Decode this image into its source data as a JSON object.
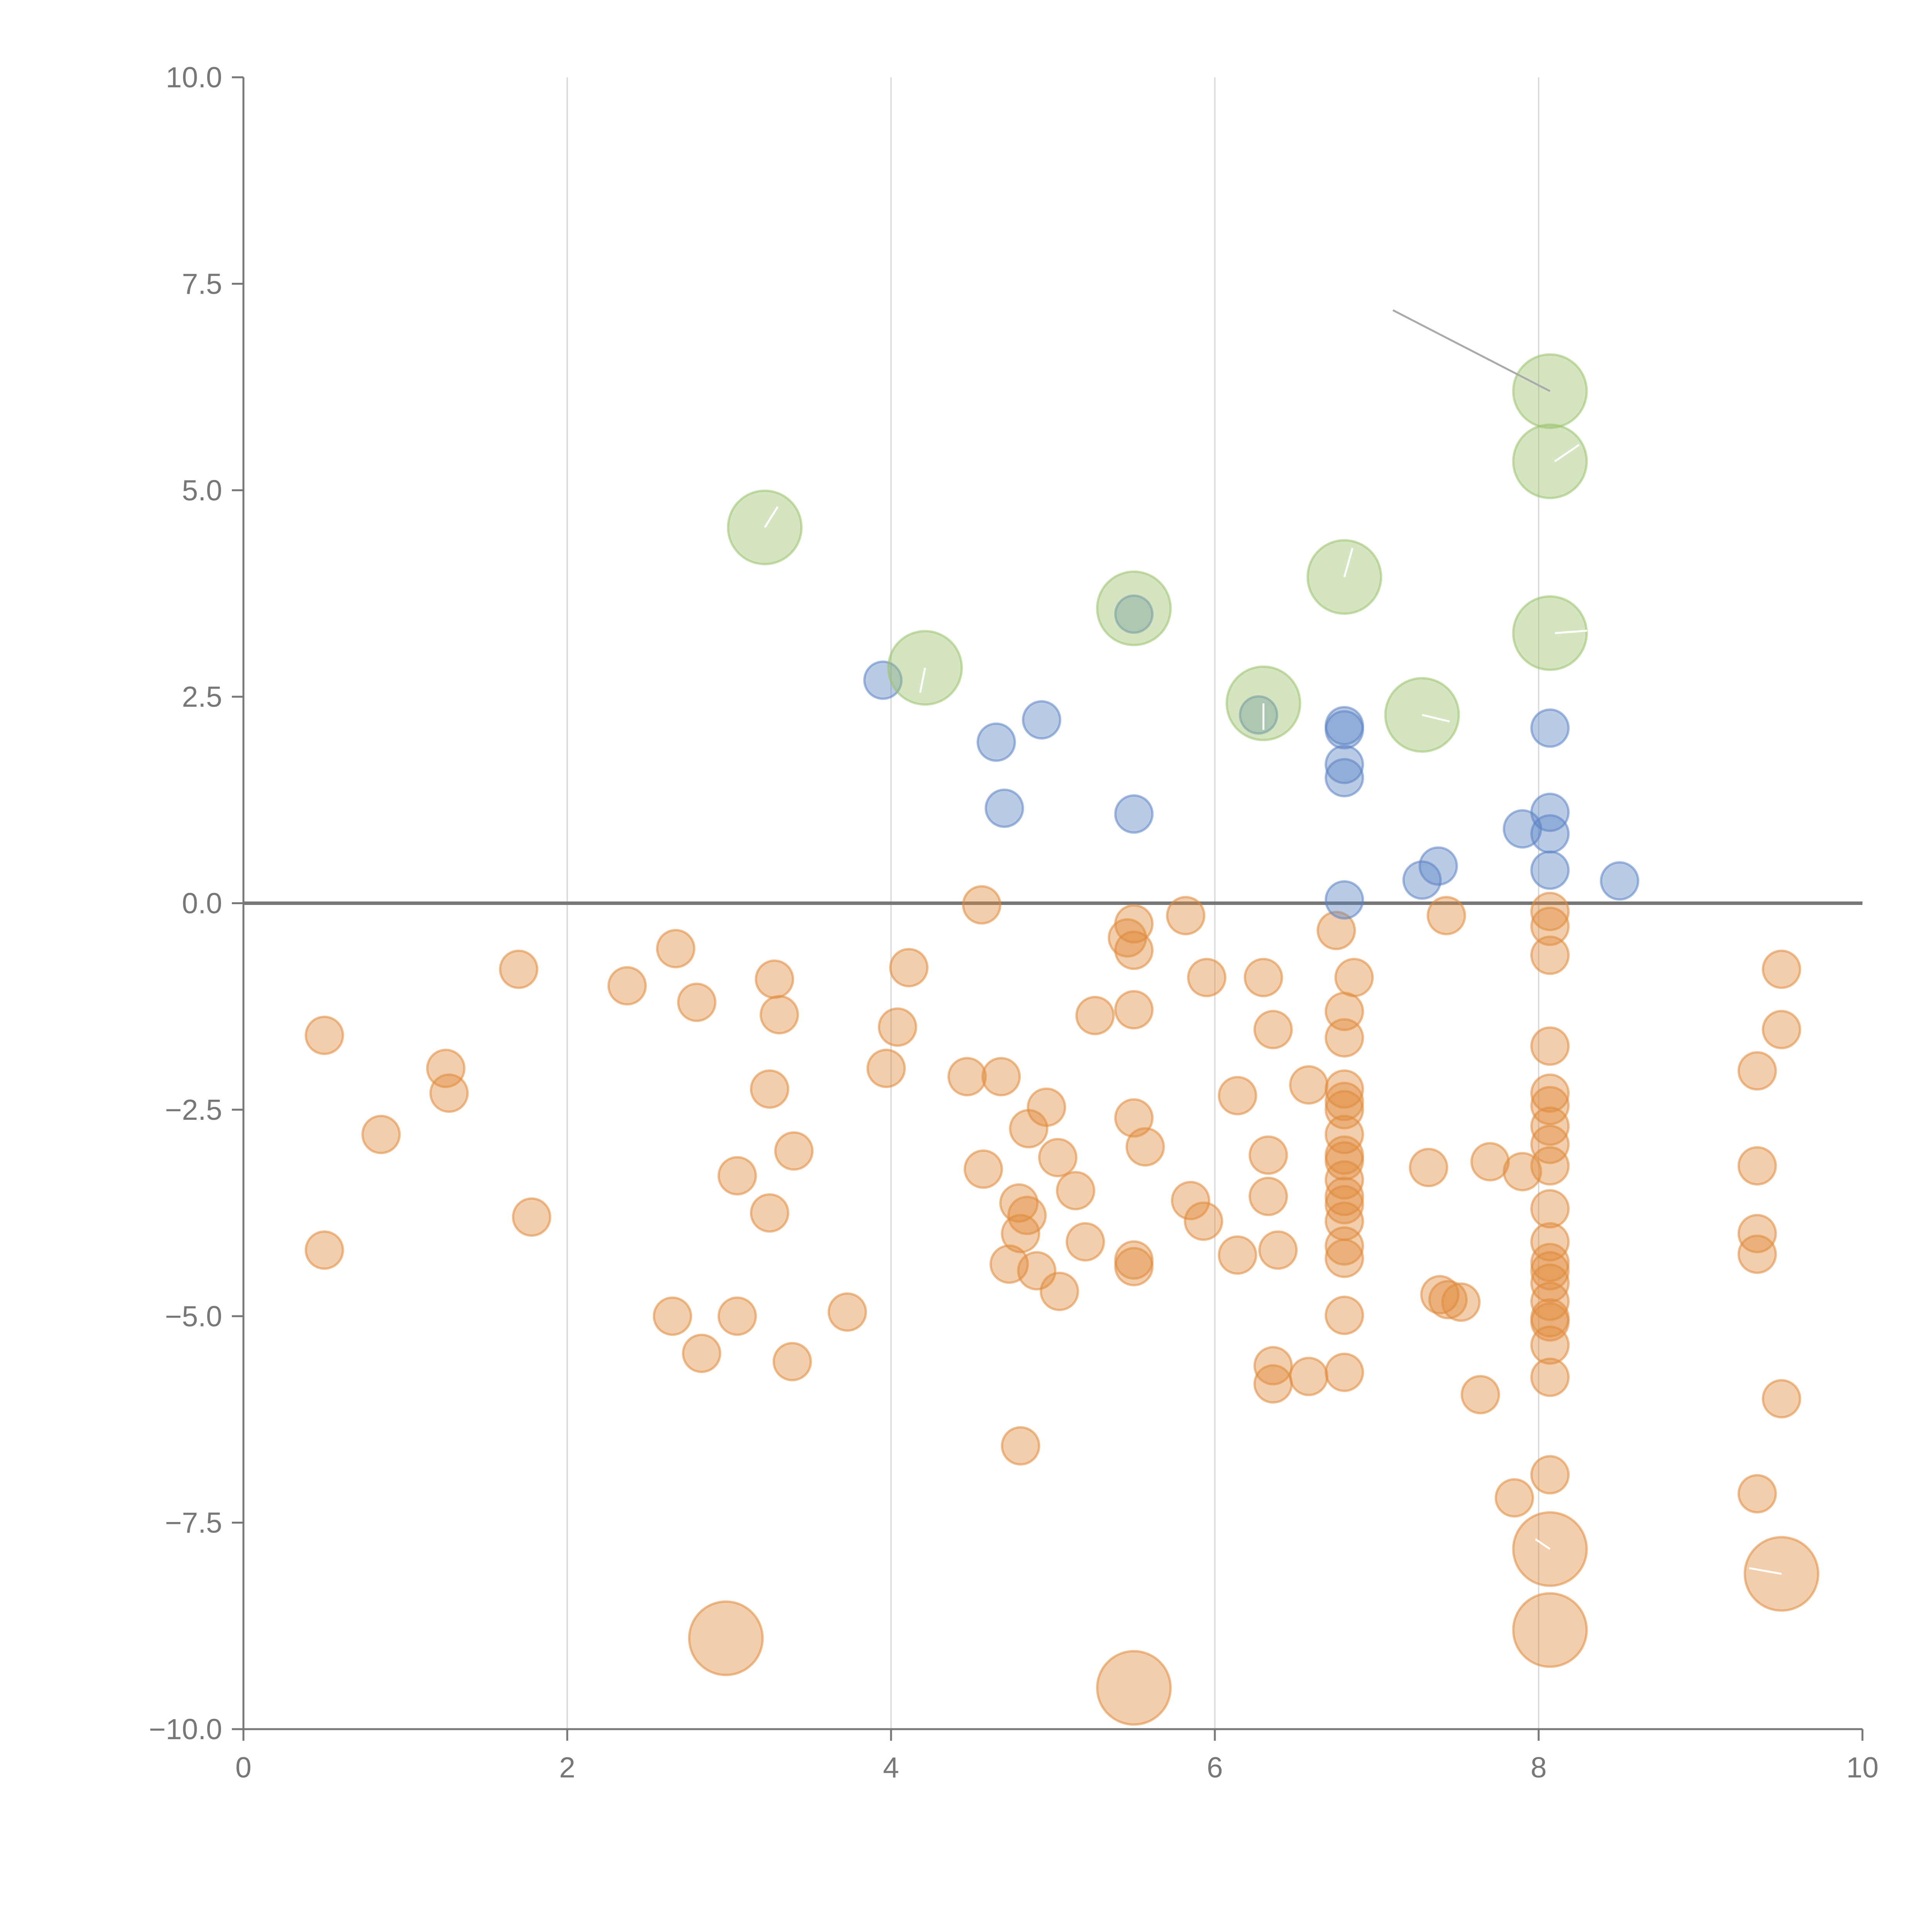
{
  "chart_data": {
    "type": "scatter",
    "title": "",
    "xlabel": "",
    "ylabel": "",
    "xlim": [
      0,
      10
    ],
    "ylim": [
      -10,
      10
    ],
    "grid": "vertical",
    "x_ticks": [
      0,
      2,
      4,
      6,
      8,
      10
    ],
    "x_tick_labels": [
      "0",
      "2",
      "4",
      "6",
      "8",
      "10"
    ],
    "y_ticks": [
      10,
      7.5,
      5,
      2.5,
      0,
      -2.5,
      -5,
      -7.5,
      -10
    ],
    "y_tick_labels": [
      "10.0",
      "7.5",
      "5.0",
      "2.5",
      "0.0",
      "−2.5",
      "−5.0",
      "−7.5",
      "−10.0"
    ],
    "reference_line": {
      "axis": "y",
      "value": 0
    },
    "series": [
      {
        "name": "orange",
        "color": "#e08a3c",
        "size": "small",
        "points": [
          [
            0.5,
            -1.6
          ],
          [
            0.5,
            -4.2
          ],
          [
            0.85,
            -2.8
          ],
          [
            1.25,
            -2.0
          ],
          [
            1.27,
            -2.3
          ],
          [
            1.7,
            -0.8
          ],
          [
            1.78,
            -3.8
          ],
          [
            2.37,
            -1.0
          ],
          [
            2.67,
            -0.55
          ],
          [
            2.8,
            -1.2
          ],
          [
            2.65,
            -5.0
          ],
          [
            2.83,
            -5.45
          ],
          [
            3.05,
            -3.3
          ],
          [
            3.05,
            -5.0
          ],
          [
            3.25,
            -2.25
          ],
          [
            3.28,
            -0.92
          ],
          [
            3.31,
            -1.35
          ],
          [
            3.25,
            -3.75
          ],
          [
            3.4,
            -3.0
          ],
          [
            3.39,
            -5.55
          ],
          [
            3.73,
            -4.95
          ],
          [
            3.97,
            -2.0
          ],
          [
            4.04,
            -1.5
          ],
          [
            4.11,
            -0.78
          ],
          [
            4.47,
            -2.1
          ],
          [
            4.56,
            -0.02
          ],
          [
            4.57,
            -3.22
          ],
          [
            4.68,
            -2.1
          ],
          [
            4.73,
            -4.37
          ],
          [
            4.79,
            -3.63
          ],
          [
            4.8,
            -4.0
          ],
          [
            4.8,
            -6.57
          ],
          [
            4.84,
            -3.78
          ],
          [
            4.85,
            -2.73
          ],
          [
            4.9,
            -4.45
          ],
          [
            4.96,
            -2.47
          ],
          [
            5.03,
            -3.08
          ],
          [
            5.04,
            -4.7
          ],
          [
            5.14,
            -3.48
          ],
          [
            5.2,
            -4.1
          ],
          [
            5.26,
            -1.36
          ],
          [
            5.46,
            -0.42
          ],
          [
            5.5,
            -0.25
          ],
          [
            5.5,
            -0.57
          ],
          [
            5.5,
            -1.29
          ],
          [
            5.5,
            -2.6
          ],
          [
            5.5,
            -4.32
          ],
          [
            5.5,
            -4.4
          ],
          [
            5.57,
            -2.95
          ],
          [
            5.82,
            -0.15
          ],
          [
            5.85,
            -3.6
          ],
          [
            5.93,
            -3.85
          ],
          [
            5.95,
            -0.9
          ],
          [
            6.14,
            -2.33
          ],
          [
            6.14,
            -4.26
          ],
          [
            6.3,
            -0.9
          ],
          [
            6.33,
            -3.05
          ],
          [
            6.33,
            -3.55
          ],
          [
            6.36,
            -1.53
          ],
          [
            6.36,
            -5.6
          ],
          [
            6.36,
            -5.82
          ],
          [
            6.39,
            -4.2
          ],
          [
            6.58,
            -2.2
          ],
          [
            6.58,
            -5.73
          ],
          [
            6.75,
            -0.33
          ],
          [
            6.8,
            -1.31
          ],
          [
            6.8,
            -1.63
          ],
          [
            6.8,
            -2.25
          ],
          [
            6.8,
            -2.4
          ],
          [
            6.8,
            -2.5
          ],
          [
            6.8,
            -2.8
          ],
          [
            6.8,
            -3.05
          ],
          [
            6.8,
            -3.12
          ],
          [
            6.8,
            -3.35
          ],
          [
            6.8,
            -3.55
          ],
          [
            6.8,
            -3.65
          ],
          [
            6.8,
            -3.85
          ],
          [
            6.8,
            -4.15
          ],
          [
            6.8,
            -4.3
          ],
          [
            6.8,
            -4.99
          ],
          [
            6.8,
            -5.68
          ],
          [
            6.86,
            -0.9
          ],
          [
            7.32,
            -3.2
          ],
          [
            7.39,
            -4.74
          ],
          [
            7.43,
            -0.15
          ],
          [
            7.44,
            -4.8
          ],
          [
            7.52,
            -4.83
          ],
          [
            7.64,
            -5.95
          ],
          [
            7.7,
            -3.13
          ],
          [
            7.85,
            -7.2
          ],
          [
            7.9,
            -3.25
          ],
          [
            8.07,
            -0.1
          ],
          [
            8.07,
            -0.28
          ],
          [
            8.07,
            -0.63
          ],
          [
            8.07,
            -1.73
          ],
          [
            8.07,
            -2.3
          ],
          [
            8.07,
            -2.45
          ],
          [
            8.07,
            -2.7
          ],
          [
            8.07,
            -2.92
          ],
          [
            8.07,
            -3.18
          ],
          [
            8.07,
            -3.7
          ],
          [
            8.07,
            -4.1
          ],
          [
            8.07,
            -4.35
          ],
          [
            8.07,
            -4.45
          ],
          [
            8.07,
            -4.6
          ],
          [
            8.07,
            -4.82
          ],
          [
            8.07,
            -5.02
          ],
          [
            8.07,
            -5.07
          ],
          [
            8.07,
            -5.35
          ],
          [
            8.07,
            -5.74
          ],
          [
            8.07,
            -6.92
          ],
          [
            9.35,
            -2.03
          ],
          [
            9.35,
            -3.18
          ],
          [
            9.35,
            -4.0
          ],
          [
            9.35,
            -4.25
          ],
          [
            9.35,
            -7.15
          ],
          [
            9.5,
            -0.8
          ],
          [
            9.5,
            -1.53
          ],
          [
            9.5,
            -6.0
          ]
        ]
      },
      {
        "name": "orange-large",
        "color": "#e08a3c",
        "size": "large",
        "points": [
          [
            2.98,
            -8.9
          ],
          [
            5.5,
            -9.5
          ],
          [
            8.07,
            -7.82
          ],
          [
            8.07,
            -8.8
          ],
          [
            9.5,
            -8.12
          ]
        ]
      },
      {
        "name": "blue",
        "color": "#5b84c4",
        "size": "small",
        "points": [
          [
            3.95,
            2.7
          ],
          [
            4.65,
            1.95
          ],
          [
            4.7,
            1.15
          ],
          [
            4.93,
            2.22
          ],
          [
            5.5,
            3.5
          ],
          [
            5.5,
            1.08
          ],
          [
            6.27,
            2.28
          ],
          [
            6.8,
            2.15
          ],
          [
            6.8,
            2.1
          ],
          [
            6.8,
            1.68
          ],
          [
            6.8,
            1.52
          ],
          [
            6.8,
            0.04
          ],
          [
            7.28,
            0.28
          ],
          [
            7.38,
            0.45
          ],
          [
            7.9,
            0.9
          ],
          [
            8.07,
            2.12
          ],
          [
            8.07,
            1.1
          ],
          [
            8.07,
            0.84
          ],
          [
            8.07,
            0.4
          ],
          [
            8.5,
            0.27
          ]
        ]
      },
      {
        "name": "green",
        "color": "#9bc26b",
        "size": "large",
        "points": [
          [
            3.22,
            4.55
          ],
          [
            4.21,
            2.85
          ],
          [
            5.5,
            3.57
          ],
          [
            6.3,
            2.42
          ],
          [
            6.8,
            3.95
          ],
          [
            7.28,
            2.28
          ],
          [
            8.07,
            6.2
          ],
          [
            8.07,
            5.35
          ],
          [
            8.07,
            3.27
          ]
        ]
      }
    ]
  }
}
